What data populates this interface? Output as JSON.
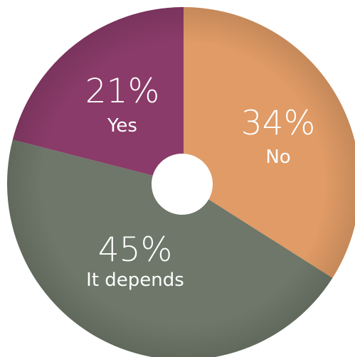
{
  "chart_data": {
    "type": "pie",
    "donut": true,
    "title": "",
    "slices": [
      {
        "percent_label": "34%",
        "label": "No",
        "value": 34,
        "color": "#e09b66"
      },
      {
        "percent_label": "45%",
        "label": "It depends",
        "value": 45,
        "color": "#6e7769"
      },
      {
        "percent_label": "21%",
        "label": "Yes",
        "value": 21,
        "color": "#8a3b69"
      }
    ],
    "center_color": "#ffffff",
    "legend": "none"
  }
}
